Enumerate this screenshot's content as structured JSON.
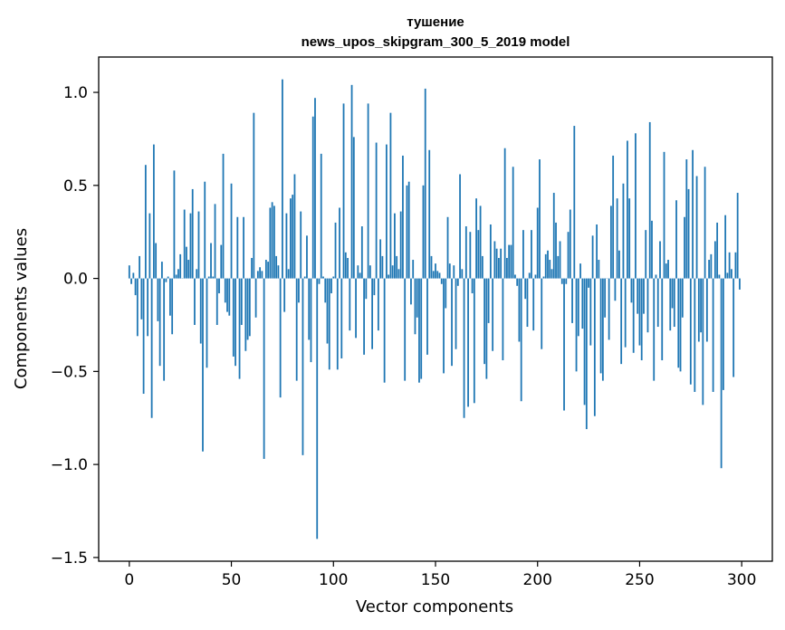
{
  "chart_data": {
    "type": "bar",
    "title_line1": "тушение",
    "title_line2": "news_upos_skipgram_300_5_2019 model",
    "xlabel": "Vector components",
    "ylabel": "Components values",
    "xlim": [
      -15,
      315
    ],
    "ylim": [
      -1.52,
      1.19
    ],
    "xticks": [
      0,
      50,
      100,
      150,
      200,
      250,
      300
    ],
    "xtick_labels": [
      "0",
      "50",
      "100",
      "150",
      "200",
      "250",
      "300"
    ],
    "yticks": [
      1.0,
      0.5,
      0.0,
      -0.5,
      -1.0,
      -1.5
    ],
    "ytick_labels": [
      "1.0",
      "0.5",
      "0.0",
      "−0.5",
      "−1.0",
      "−1.5"
    ],
    "bar_color": "#1f77b4",
    "values": [
      0.07,
      -0.03,
      0.03,
      -0.09,
      -0.31,
      0.12,
      -0.22,
      -0.62,
      0.61,
      -0.31,
      0.35,
      -0.75,
      0.72,
      0.19,
      -0.23,
      -0.47,
      0.09,
      -0.55,
      -0.02,
      0.01,
      -0.2,
      -0.3,
      0.58,
      0.02,
      0.05,
      0.13,
      0.0,
      0.37,
      0.17,
      0.1,
      0.35,
      0.48,
      -0.25,
      0.05,
      0.36,
      -0.35,
      -0.93,
      0.52,
      -0.48,
      0.01,
      0.19,
      0.01,
      0.4,
      -0.25,
      -0.08,
      0.18,
      0.67,
      -0.13,
      -0.18,
      -0.2,
      0.51,
      -0.42,
      -0.47,
      0.33,
      -0.54,
      -0.25,
      0.33,
      -0.39,
      -0.33,
      -0.31,
      0.11,
      0.89,
      -0.21,
      0.04,
      0.06,
      0.04,
      -0.97,
      0.1,
      0.09,
      0.38,
      0.41,
      0.39,
      0.12,
      0.07,
      -0.64,
      1.07,
      -0.18,
      0.35,
      0.05,
      0.43,
      0.45,
      0.56,
      -0.55,
      -0.13,
      0.36,
      -0.95,
      0.01,
      0.23,
      -0.33,
      -0.45,
      0.87,
      0.97,
      -1.4,
      -0.03,
      0.67,
      0.01,
      -0.13,
      -0.35,
      -0.49,
      -0.08,
      0.01,
      0.3,
      -0.49,
      0.38,
      -0.43,
      0.94,
      0.14,
      0.11,
      -0.28,
      1.04,
      0.76,
      -0.32,
      0.07,
      0.03,
      0.28,
      -0.41,
      -0.11,
      0.94,
      0.07,
      -0.38,
      -0.09,
      0.73,
      -0.28,
      0.21,
      0.12,
      -0.56,
      0.72,
      0.02,
      0.89,
      0.07,
      0.35,
      0.12,
      0.05,
      0.36,
      0.66,
      -0.55,
      0.5,
      0.52,
      -0.14,
      0.1,
      -0.3,
      -0.21,
      -0.56,
      -0.54,
      0.5,
      1.02,
      -0.41,
      0.69,
      0.12,
      0.04,
      0.08,
      0.04,
      0.03,
      -0.03,
      -0.51,
      -0.16,
      0.33,
      0.08,
      -0.47,
      0.07,
      -0.38,
      -0.04,
      0.56,
      0.05,
      -0.75,
      0.28,
      -0.69,
      0.25,
      -0.08,
      -0.67,
      0.43,
      0.26,
      0.39,
      0.12,
      -0.46,
      -0.54,
      -0.24,
      0.29,
      -0.39,
      0.2,
      0.16,
      0.11,
      0.16,
      -0.44,
      0.7,
      0.11,
      0.18,
      0.18,
      0.6,
      0.02,
      -0.04,
      -0.34,
      -0.66,
      0.26,
      -0.11,
      -0.26,
      0.03,
      0.26,
      -0.28,
      0.02,
      0.38,
      0.64,
      -0.38,
      0.01,
      0.13,
      0.15,
      0.1,
      0.05,
      0.46,
      0.3,
      0.12,
      0.2,
      -0.03,
      -0.71,
      -0.03,
      0.25,
      0.37,
      -0.24,
      0.82,
      -0.5,
      -0.31,
      0.08,
      -0.27,
      -0.68,
      -0.81,
      -0.05,
      -0.36,
      0.23,
      -0.74,
      0.29,
      0.1,
      -0.51,
      -0.55,
      -0.21,
      0.0,
      -0.33,
      0.39,
      0.66,
      -0.12,
      0.43,
      0.15,
      -0.46,
      0.51,
      -0.37,
      0.74,
      0.43,
      -0.13,
      -0.4,
      0.78,
      -0.19,
      -0.36,
      -0.44,
      -0.19,
      0.26,
      -0.29,
      0.84,
      0.31,
      -0.55,
      0.02,
      -0.26,
      0.2,
      -0.44,
      0.68,
      0.08,
      0.1,
      -0.28,
      -0.16,
      -0.26,
      0.42,
      -0.48,
      -0.5,
      -0.21,
      0.33,
      0.64,
      0.48,
      -0.57,
      0.69,
      -0.61,
      0.55,
      -0.34,
      -0.29,
      -0.68,
      0.6,
      -0.34,
      0.1,
      0.13,
      -0.61,
      0.2,
      0.3,
      0.02,
      -1.02,
      -0.6,
      0.34,
      0.03,
      0.14,
      0.05,
      -0.53,
      0.14,
      0.46,
      -0.06
    ]
  }
}
